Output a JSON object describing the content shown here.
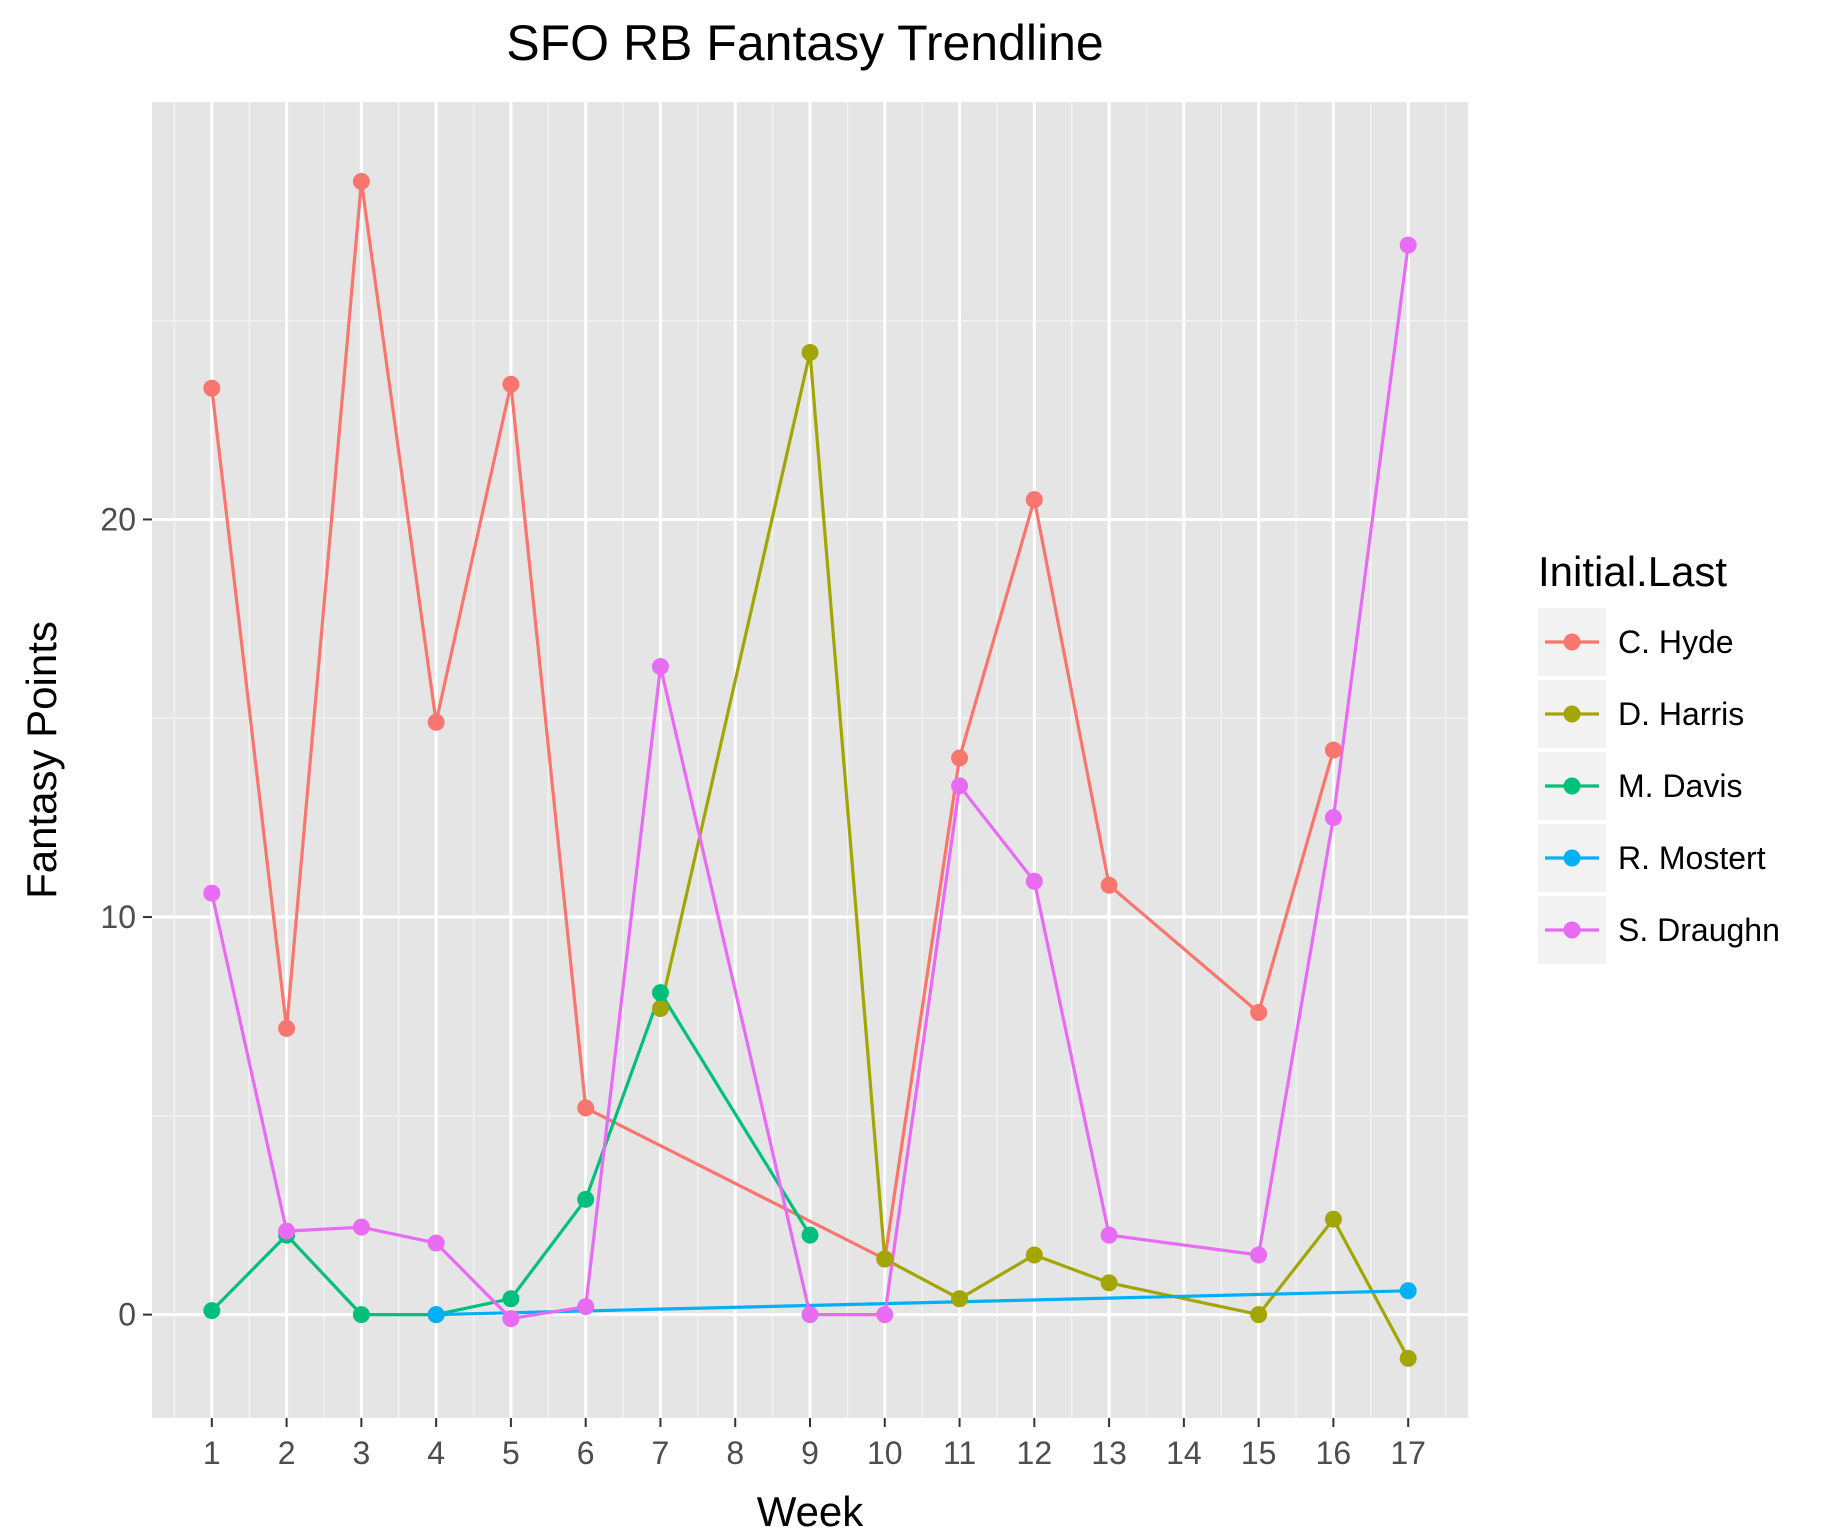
{
  "chart_data": {
    "type": "line",
    "title": "SFO RB Fantasy Trendline",
    "xlabel": "Week",
    "ylabel": "Fantasy Points",
    "x_ticks": [
      "1",
      "2",
      "3",
      "4",
      "5",
      "6",
      "7",
      "8",
      "9",
      "10",
      "11",
      "12",
      "13",
      "14",
      "15",
      "16",
      "17"
    ],
    "y_ticks": [
      0,
      10,
      20
    ],
    "ylim": [
      -2.6,
      30.5
    ],
    "grid": true,
    "background": "#e5e5e5",
    "legend": {
      "title": "Initial.Last",
      "position": "right"
    },
    "series": [
      {
        "name": "C. Hyde",
        "color": "#f8766d",
        "points": [
          [
            1,
            23.3
          ],
          [
            2,
            7.2
          ],
          [
            3,
            28.5
          ],
          [
            4,
            14.9
          ],
          [
            5,
            23.4
          ],
          [
            6,
            5.2
          ],
          [
            10,
            1.4
          ],
          [
            11,
            14.0
          ],
          [
            12,
            20.5
          ],
          [
            13,
            10.8
          ],
          [
            15,
            7.6
          ],
          [
            16,
            14.2
          ]
        ]
      },
      {
        "name": "D. Harris",
        "color": "#a3a500",
        "points": [
          [
            7,
            7.7
          ],
          [
            9,
            24.2
          ],
          [
            10,
            1.4
          ],
          [
            11,
            0.4
          ],
          [
            12,
            1.5
          ],
          [
            13,
            0.8
          ],
          [
            15,
            0.0
          ],
          [
            16,
            2.4
          ],
          [
            17,
            -1.1
          ]
        ]
      },
      {
        "name": "M. Davis",
        "color": "#00bf7d",
        "points": [
          [
            1,
            0.1
          ],
          [
            2,
            2.0
          ],
          [
            3,
            0.0
          ],
          [
            4,
            0.0
          ],
          [
            5,
            0.4
          ],
          [
            6,
            2.9
          ],
          [
            7,
            8.1
          ],
          [
            9,
            2.0
          ]
        ]
      },
      {
        "name": "R. Mostert",
        "color": "#00b0f6",
        "points": [
          [
            4,
            0.0
          ],
          [
            17,
            0.6
          ]
        ]
      },
      {
        "name": "S. Draughn",
        "color": "#e76bf3",
        "points": [
          [
            1,
            10.6
          ],
          [
            2,
            2.1
          ],
          [
            3,
            2.2
          ],
          [
            4,
            1.8
          ],
          [
            5,
            -0.1
          ],
          [
            6,
            0.2
          ],
          [
            7,
            16.3
          ],
          [
            9,
            0.0
          ],
          [
            10,
            0.0
          ],
          [
            11,
            13.3
          ],
          [
            12,
            10.9
          ],
          [
            13,
            2.0
          ],
          [
            15,
            1.5
          ],
          [
            16,
            12.5
          ],
          [
            17,
            26.9
          ]
        ]
      }
    ]
  }
}
